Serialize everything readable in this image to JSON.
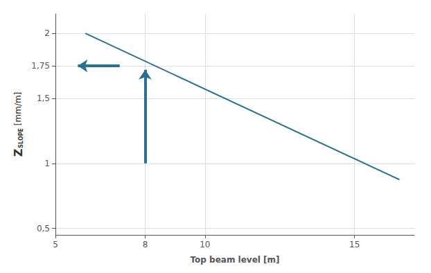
{
  "chart_data": {
    "type": "line",
    "xlabel": "Top beam level [m]",
    "ylabel": "Z SLOPE [mm/m]",
    "x": [
      6.0,
      16.5
    ],
    "series": [
      {
        "color": "#2a7090",
        "values": [
          2.0,
          0.875
        ]
      }
    ],
    "xlim": [
      5,
      17
    ],
    "xticks": [
      5,
      8,
      10,
      15
    ],
    "ylim": [
      0.45,
      2.15
    ],
    "yticks": [
      {
        "value": 0.5,
        "label": "0,5"
      },
      1,
      {
        "value": 1.5,
        "label": "1,5"
      },
      {
        "value": 1.75,
        "label": "1,75"
      },
      2
    ],
    "grid": true,
    "annotations": [
      {
        "type": "arrow",
        "from": [
          7.15,
          1.75
        ],
        "to": [
          5.75,
          1.75
        ]
      },
      {
        "type": "arrow",
        "from": [
          8.0,
          1.0
        ],
        "to": [
          8.0,
          1.72
        ]
      }
    ]
  }
}
